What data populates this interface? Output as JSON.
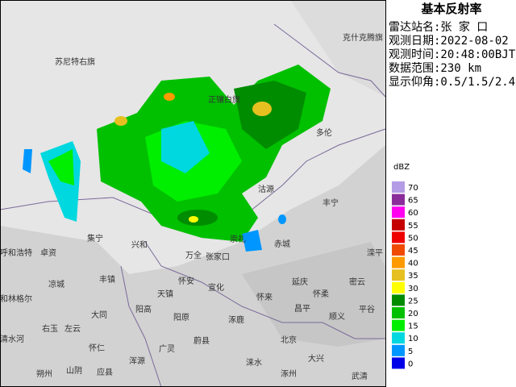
{
  "title": "基本反射率",
  "info": [
    "雷达站名:张 家 口",
    "观测日期:2022-08-02",
    "观测时间:20:48:00BJT",
    "数据范围:230 km",
    "显示仰角:0.5/1.5/2.4"
  ],
  "legend": {
    "unit": "dBZ",
    "levels": [
      {
        "value": 70,
        "color": "#b49ce6"
      },
      {
        "value": 65,
        "color": "#8a2d9a"
      },
      {
        "value": 60,
        "color": "#ff00f0"
      },
      {
        "value": 55,
        "color": "#c40000"
      },
      {
        "value": 50,
        "color": "#ee0000"
      },
      {
        "value": 45,
        "color": "#f04a00"
      },
      {
        "value": 40,
        "color": "#ff9a00"
      },
      {
        "value": 35,
        "color": "#e6c020"
      },
      {
        "value": 30,
        "color": "#ffff00"
      },
      {
        "value": 25,
        "color": "#008c00"
      },
      {
        "value": 20,
        "color": "#00c000"
      },
      {
        "value": 15,
        "color": "#00ee00"
      },
      {
        "value": 10,
        "color": "#00d8e0"
      },
      {
        "value": 5,
        "color": "#0096ff"
      },
      {
        "value": 0,
        "color": "#0000e8"
      }
    ]
  },
  "places": [
    "苏尼特右旗",
    "克什克腾旗",
    "多伦",
    "正镶白旗",
    "沽源",
    "丰宁",
    "兴和",
    "集宁",
    "卓资",
    "呼和浩特",
    "凉城",
    "丰镇",
    "万全",
    "张家口",
    "崇礼",
    "赤城",
    "滦平",
    "怀安",
    "宣化",
    "天镇",
    "延庆",
    "怀柔",
    "密云",
    "和林格尔",
    "阳高",
    "怀来",
    "平谷",
    "大同",
    "阳原",
    "涿鹿",
    "昌平",
    "顺义",
    "右玉",
    "左云",
    "北京",
    "清水河",
    "怀仁",
    "广灵",
    "蔚县",
    "涞水",
    "大兴",
    "朔州",
    "山阴",
    "应县",
    "浑源",
    "涿州",
    "武清"
  ]
}
